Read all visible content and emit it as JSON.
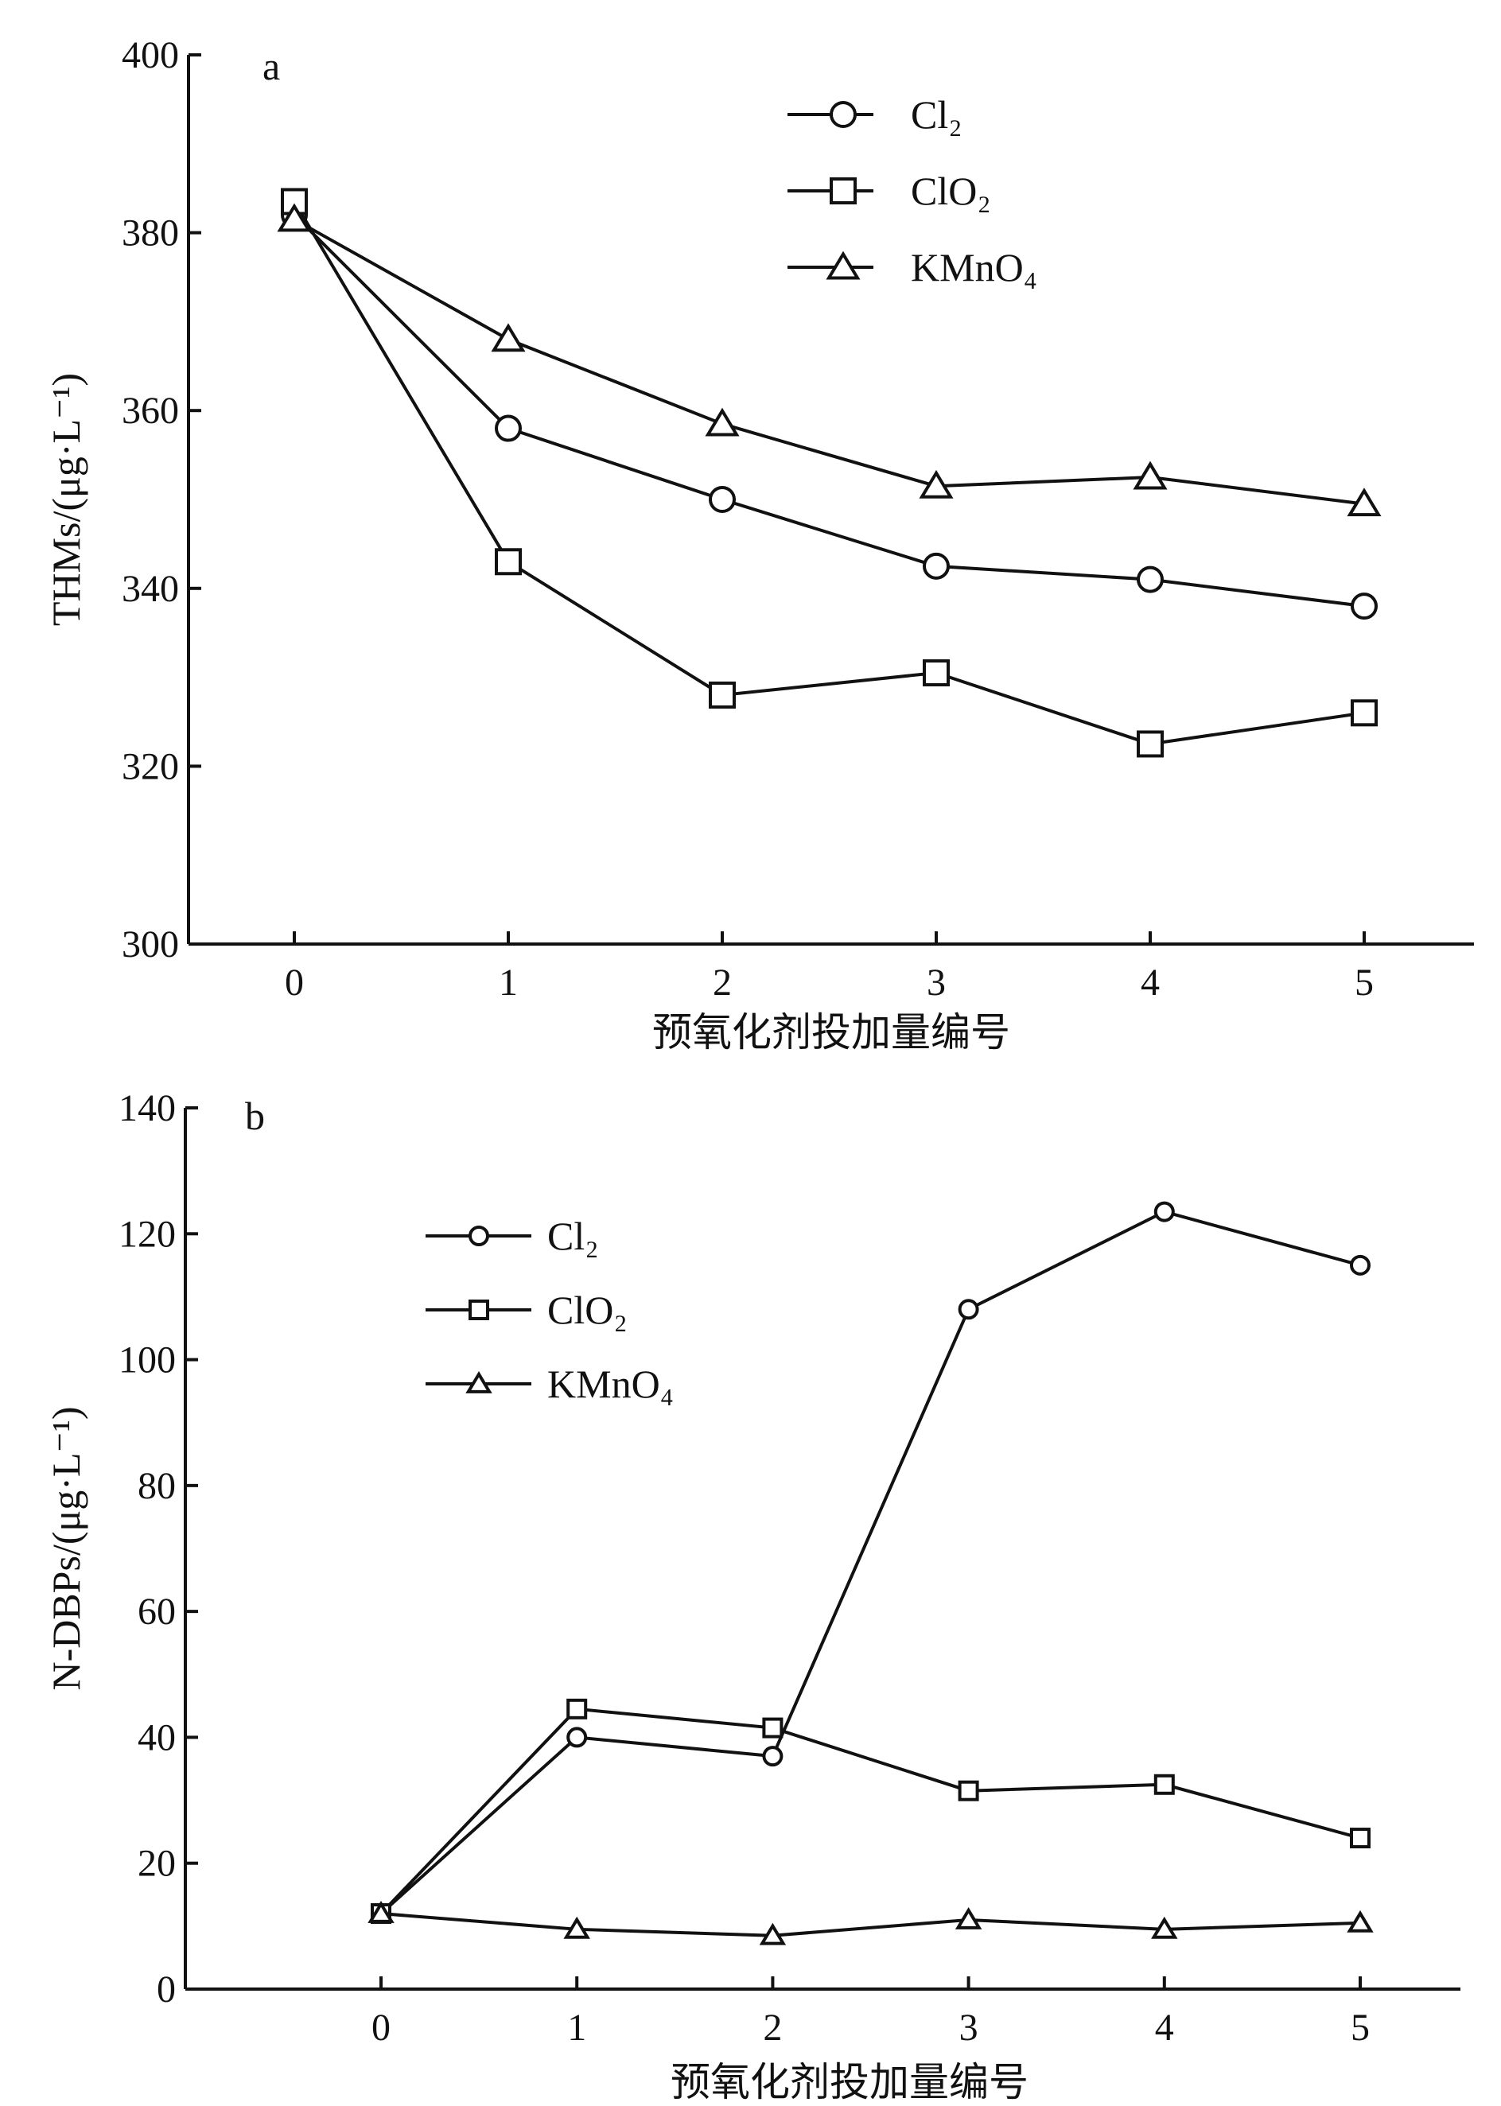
{
  "chart_data": [
    {
      "type": "line",
      "panel_label": "a",
      "xlabel": "预氧化剂投加量编号",
      "ylabel": "THMs/(μg·L⁻¹)",
      "x": [
        0,
        1,
        2,
        3,
        4,
        5
      ],
      "xlim": [
        -0.5,
        5.5
      ],
      "ylim": [
        300,
        400
      ],
      "yticks": [
        300,
        320,
        340,
        360,
        380,
        400
      ],
      "legend": "top-right",
      "grid": false,
      "series": [
        {
          "name": "Cl₂",
          "marker": "circle",
          "values": [
            382,
            358,
            350,
            342.5,
            341,
            338
          ]
        },
        {
          "name": "ClO₂",
          "marker": "square",
          "values": [
            383.5,
            343,
            328,
            330.5,
            322.5,
            326
          ]
        },
        {
          "name": "KMnO₄",
          "marker": "triangle",
          "values": [
            381.5,
            368,
            358.5,
            351.5,
            352.5,
            349.5
          ]
        }
      ]
    },
    {
      "type": "line",
      "panel_label": "b",
      "xlabel": "预氧化剂投加量编号",
      "ylabel": "N-DBPs/(μg·L⁻¹)",
      "x": [
        0,
        1,
        2,
        3,
        4,
        5
      ],
      "xlim": [
        -1,
        5.5
      ],
      "ylim": [
        0,
        140
      ],
      "yticks": [
        0,
        20,
        40,
        60,
        80,
        100,
        120,
        140
      ],
      "legend": "top-left",
      "grid": false,
      "series": [
        {
          "name": "Cl₂",
          "marker": "circle",
          "values": [
            12,
            40,
            37,
            108,
            123.5,
            115
          ]
        },
        {
          "name": "ClO₂",
          "marker": "square",
          "values": [
            12,
            44.5,
            41.5,
            31.5,
            32.5,
            24
          ]
        },
        {
          "name": "KMnO₄",
          "marker": "triangle",
          "values": [
            12,
            9.5,
            8.5,
            11,
            9.5,
            10.5
          ]
        }
      ]
    }
  ]
}
